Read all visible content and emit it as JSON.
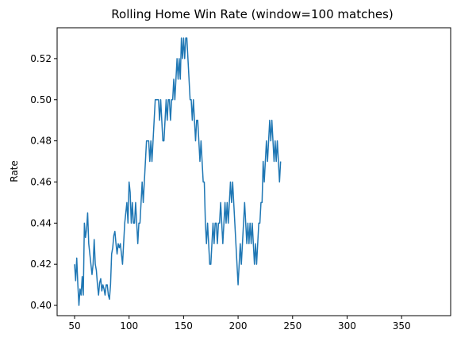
{
  "chart_data": {
    "type": "line",
    "title": "Rolling Home Win Rate (window=100 matches)",
    "xlabel": "",
    "ylabel": "Rate",
    "xlim": [
      34,
      395
    ],
    "ylim": [
      0.395,
      0.535
    ],
    "x_ticks": [
      50,
      100,
      150,
      200,
      250,
      300,
      350
    ],
    "y_ticks": [
      0.4,
      0.42,
      0.44,
      0.46,
      0.48,
      0.5,
      0.52
    ],
    "grid": false,
    "color": "#1f77b4",
    "series": [
      {
        "name": "",
        "points": [
          [
            50,
            0.42
          ],
          [
            51,
            0.412
          ],
          [
            52,
            0.423
          ],
          [
            53,
            0.41
          ],
          [
            54,
            0.4
          ],
          [
            55,
            0.408
          ],
          [
            56,
            0.405
          ],
          [
            57,
            0.414
          ],
          [
            58,
            0.405
          ],
          [
            59,
            0.44
          ],
          [
            60,
            0.433
          ],
          [
            61,
            0.437
          ],
          [
            62,
            0.445
          ],
          [
            63,
            0.43
          ],
          [
            64,
            0.425
          ],
          [
            65,
            0.42
          ],
          [
            66,
            0.415
          ],
          [
            67,
            0.42
          ],
          [
            68,
            0.432
          ],
          [
            69,
            0.42
          ],
          [
            70,
            0.417
          ],
          [
            71,
            0.41
          ],
          [
            72,
            0.405
          ],
          [
            73,
            0.411
          ],
          [
            74,
            0.413
          ],
          [
            75,
            0.407
          ],
          [
            76,
            0.41
          ],
          [
            77,
            0.408
          ],
          [
            78,
            0.405
          ],
          [
            79,
            0.41
          ],
          [
            80,
            0.41
          ],
          [
            81,
            0.405
          ],
          [
            82,
            0.403
          ],
          [
            83,
            0.41
          ],
          [
            84,
            0.425
          ],
          [
            85,
            0.428
          ],
          [
            86,
            0.434
          ],
          [
            87,
            0.436
          ],
          [
            88,
            0.43
          ],
          [
            89,
            0.425
          ],
          [
            90,
            0.43
          ],
          [
            91,
            0.428
          ],
          [
            92,
            0.43
          ],
          [
            93,
            0.425
          ],
          [
            94,
            0.42
          ],
          [
            95,
            0.43
          ],
          [
            96,
            0.44
          ],
          [
            97,
            0.445
          ],
          [
            98,
            0.45
          ],
          [
            99,
            0.44
          ],
          [
            100,
            0.46
          ],
          [
            101,
            0.455
          ],
          [
            102,
            0.44
          ],
          [
            103,
            0.45
          ],
          [
            104,
            0.44
          ],
          [
            105,
            0.44
          ],
          [
            106,
            0.45
          ],
          [
            107,
            0.44
          ],
          [
            108,
            0.43
          ],
          [
            109,
            0.44
          ],
          [
            110,
            0.44
          ],
          [
            111,
            0.45
          ],
          [
            112,
            0.46
          ],
          [
            113,
            0.45
          ],
          [
            114,
            0.46
          ],
          [
            115,
            0.47
          ],
          [
            116,
            0.48
          ],
          [
            117,
            0.48
          ],
          [
            118,
            0.48
          ],
          [
            119,
            0.47
          ],
          [
            120,
            0.48
          ],
          [
            121,
            0.47
          ],
          [
            122,
            0.48
          ],
          [
            123,
            0.49
          ],
          [
            124,
            0.5
          ],
          [
            125,
            0.5
          ],
          [
            126,
            0.5
          ],
          [
            127,
            0.5
          ],
          [
            128,
            0.49
          ],
          [
            129,
            0.5
          ],
          [
            130,
            0.49
          ],
          [
            131,
            0.48
          ],
          [
            132,
            0.48
          ],
          [
            133,
            0.49
          ],
          [
            134,
            0.5
          ],
          [
            135,
            0.49
          ],
          [
            136,
            0.5
          ],
          [
            137,
            0.5
          ],
          [
            138,
            0.49
          ],
          [
            139,
            0.5
          ],
          [
            140,
            0.5
          ],
          [
            141,
            0.51
          ],
          [
            142,
            0.5
          ],
          [
            143,
            0.51
          ],
          [
            144,
            0.52
          ],
          [
            145,
            0.51
          ],
          [
            146,
            0.52
          ],
          [
            147,
            0.51
          ],
          [
            148,
            0.53
          ],
          [
            149,
            0.52
          ],
          [
            150,
            0.53
          ],
          [
            151,
            0.52
          ],
          [
            152,
            0.53
          ],
          [
            153,
            0.53
          ],
          [
            154,
            0.52
          ],
          [
            155,
            0.51
          ],
          [
            156,
            0.5
          ],
          [
            157,
            0.5
          ],
          [
            158,
            0.49
          ],
          [
            159,
            0.5
          ],
          [
            160,
            0.49
          ],
          [
            161,
            0.48
          ],
          [
            162,
            0.49
          ],
          [
            163,
            0.49
          ],
          [
            164,
            0.48
          ],
          [
            165,
            0.47
          ],
          [
            166,
            0.48
          ],
          [
            167,
            0.47
          ],
          [
            168,
            0.46
          ],
          [
            169,
            0.46
          ],
          [
            170,
            0.44
          ],
          [
            171,
            0.43
          ],
          [
            172,
            0.44
          ],
          [
            173,
            0.43
          ],
          [
            174,
            0.42
          ],
          [
            175,
            0.42
          ],
          [
            176,
            0.43
          ],
          [
            177,
            0.44
          ],
          [
            178,
            0.43
          ],
          [
            179,
            0.44
          ],
          [
            180,
            0.44
          ],
          [
            181,
            0.43
          ],
          [
            182,
            0.44
          ],
          [
            183,
            0.44
          ],
          [
            184,
            0.45
          ],
          [
            185,
            0.44
          ],
          [
            186,
            0.43
          ],
          [
            187,
            0.44
          ],
          [
            188,
            0.45
          ],
          [
            189,
            0.44
          ],
          [
            190,
            0.45
          ],
          [
            191,
            0.44
          ],
          [
            192,
            0.45
          ],
          [
            193,
            0.46
          ],
          [
            194,
            0.45
          ],
          [
            195,
            0.46
          ],
          [
            196,
            0.45
          ],
          [
            197,
            0.44
          ],
          [
            198,
            0.43
          ],
          [
            199,
            0.42
          ],
          [
            200,
            0.41
          ],
          [
            201,
            0.42
          ],
          [
            202,
            0.43
          ],
          [
            203,
            0.42
          ],
          [
            204,
            0.43
          ],
          [
            205,
            0.44
          ],
          [
            206,
            0.45
          ],
          [
            207,
            0.44
          ],
          [
            208,
            0.43
          ],
          [
            209,
            0.44
          ],
          [
            210,
            0.43
          ],
          [
            211,
            0.44
          ],
          [
            212,
            0.43
          ],
          [
            213,
            0.44
          ],
          [
            214,
            0.43
          ],
          [
            215,
            0.42
          ],
          [
            216,
            0.43
          ],
          [
            217,
            0.42
          ],
          [
            218,
            0.43
          ],
          [
            219,
            0.44
          ],
          [
            220,
            0.44
          ],
          [
            221,
            0.45
          ],
          [
            222,
            0.45
          ],
          [
            223,
            0.47
          ],
          [
            224,
            0.46
          ],
          [
            225,
            0.47
          ],
          [
            226,
            0.48
          ],
          [
            227,
            0.47
          ],
          [
            228,
            0.48
          ],
          [
            229,
            0.49
          ],
          [
            230,
            0.48
          ],
          [
            231,
            0.49
          ],
          [
            232,
            0.48
          ],
          [
            233,
            0.47
          ],
          [
            234,
            0.48
          ],
          [
            235,
            0.47
          ],
          [
            236,
            0.48
          ],
          [
            237,
            0.47
          ],
          [
            238,
            0.46
          ],
          [
            239,
            0.47
          ]
        ]
      }
    ]
  }
}
